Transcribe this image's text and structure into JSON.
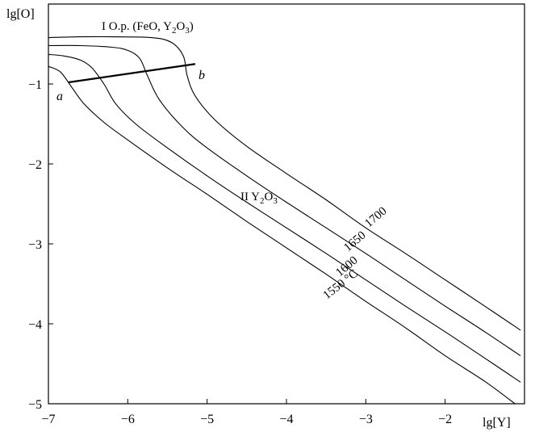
{
  "chart_data": {
    "type": "line",
    "xlabel": "lg[Y]",
    "ylabel": "lg[O]",
    "xlim": [
      -7,
      -1
    ],
    "ylim": [
      -5,
      0
    ],
    "x_ticks": [
      -7,
      -6,
      -5,
      -4,
      -3,
      -2
    ],
    "x_tick_labels": [
      "−7",
      "−6",
      "−5",
      "−4",
      "−3",
      "−2"
    ],
    "y_ticks": [
      -1,
      -2,
      -3,
      -4,
      -5
    ],
    "y_tick_labels": [
      "−1",
      "−2",
      "−3",
      "−4",
      "−5"
    ],
    "grid": false,
    "legend": "none",
    "series": [
      {
        "name": "1700",
        "points": [
          [
            -7.0,
            -0.42
          ],
          [
            -6.6,
            -0.41
          ],
          [
            -6.2,
            -0.41
          ],
          [
            -5.7,
            -0.42
          ],
          [
            -5.45,
            -0.48
          ],
          [
            -5.3,
            -0.65
          ],
          [
            -5.25,
            -0.9
          ],
          [
            -5.15,
            -1.15
          ],
          [
            -4.9,
            -1.45
          ],
          [
            -4.5,
            -1.78
          ],
          [
            -4.0,
            -2.12
          ],
          [
            -3.5,
            -2.45
          ],
          [
            -3.0,
            -2.8
          ],
          [
            -2.5,
            -3.12
          ],
          [
            -2.0,
            -3.45
          ],
          [
            -1.5,
            -3.78
          ],
          [
            -1.05,
            -4.08
          ]
        ]
      },
      {
        "name": "1650",
        "points": [
          [
            -7.0,
            -0.52
          ],
          [
            -6.6,
            -0.52
          ],
          [
            -6.2,
            -0.54
          ],
          [
            -6.0,
            -0.58
          ],
          [
            -5.85,
            -0.68
          ],
          [
            -5.75,
            -0.9
          ],
          [
            -5.6,
            -1.2
          ],
          [
            -5.3,
            -1.55
          ],
          [
            -5.0,
            -1.8
          ],
          [
            -4.5,
            -2.15
          ],
          [
            -4.0,
            -2.48
          ],
          [
            -3.5,
            -2.8
          ],
          [
            -3.0,
            -3.12
          ],
          [
            -2.5,
            -3.45
          ],
          [
            -2.0,
            -3.78
          ],
          [
            -1.5,
            -4.1
          ],
          [
            -1.05,
            -4.4
          ]
        ]
      },
      {
        "name": "1600",
        "points": [
          [
            -7.0,
            -0.63
          ],
          [
            -6.8,
            -0.65
          ],
          [
            -6.6,
            -0.7
          ],
          [
            -6.45,
            -0.8
          ],
          [
            -6.3,
            -1.0
          ],
          [
            -6.15,
            -1.25
          ],
          [
            -5.9,
            -1.5
          ],
          [
            -5.5,
            -1.8
          ],
          [
            -5.0,
            -2.15
          ],
          [
            -4.5,
            -2.48
          ],
          [
            -4.0,
            -2.8
          ],
          [
            -3.5,
            -3.12
          ],
          [
            -3.0,
            -3.45
          ],
          [
            -2.5,
            -3.78
          ],
          [
            -2.0,
            -4.1
          ],
          [
            -1.5,
            -4.43
          ],
          [
            -1.05,
            -4.73
          ]
        ]
      },
      {
        "name": "1550 °C",
        "points": [
          [
            -7.0,
            -0.78
          ],
          [
            -6.85,
            -0.85
          ],
          [
            -6.7,
            -1.05
          ],
          [
            -6.55,
            -1.25
          ],
          [
            -6.3,
            -1.48
          ],
          [
            -6.0,
            -1.7
          ],
          [
            -5.5,
            -2.05
          ],
          [
            -5.0,
            -2.38
          ],
          [
            -4.5,
            -2.72
          ],
          [
            -4.0,
            -3.05
          ],
          [
            -3.5,
            -3.38
          ],
          [
            -3.0,
            -3.72
          ],
          [
            -2.5,
            -4.05
          ],
          [
            -2.0,
            -4.4
          ],
          [
            -1.5,
            -4.72
          ],
          [
            -1.12,
            -5.0
          ]
        ]
      }
    ],
    "line_ab": {
      "points": [
        [
          -6.75,
          -0.98
        ],
        [
          -5.15,
          -0.75
        ]
      ],
      "start_label": "a",
      "end_label": "b"
    },
    "annotations": {
      "region_I": {
        "prefix": "I  O.p. (FeO, Y",
        "sub1": "2",
        "mid": "O",
        "sub2": "3",
        "suffix": ")"
      },
      "region_II": {
        "prefix": "II  Y",
        "sub1": "2",
        "mid": "O",
        "sub2": "3",
        "suffix": ""
      }
    }
  }
}
